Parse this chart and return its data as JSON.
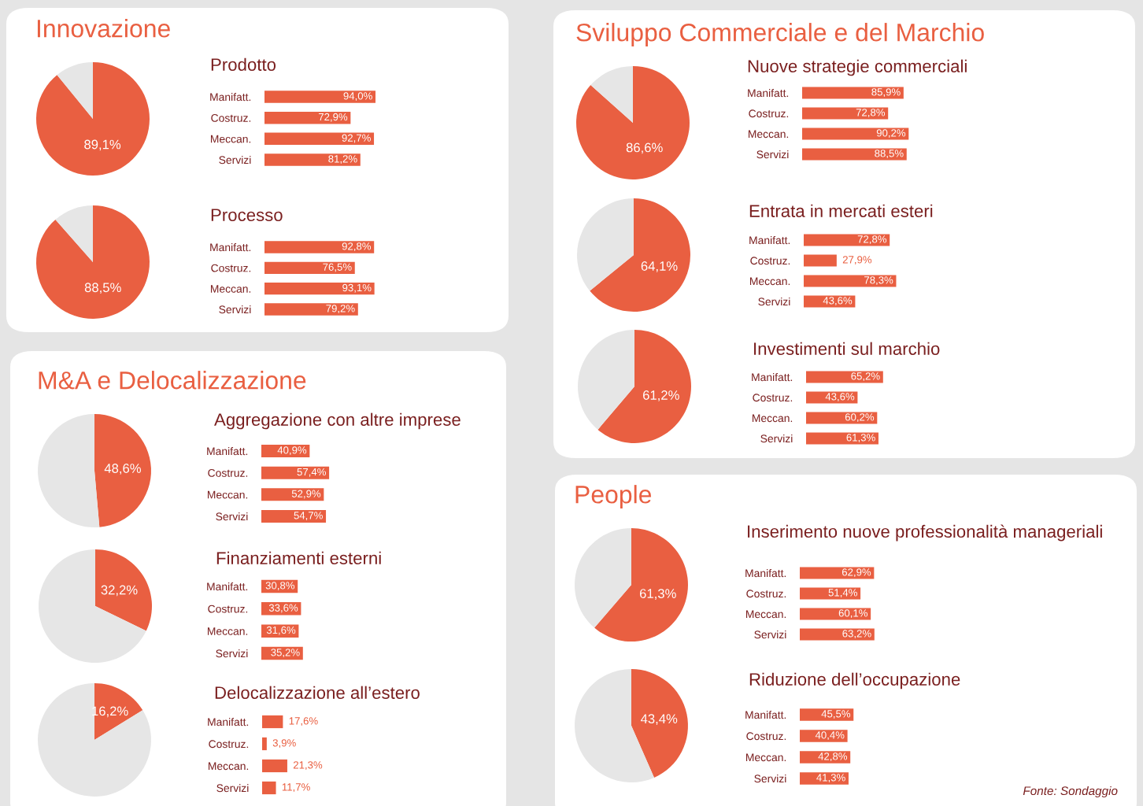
{
  "chart_data": [
    {
      "type": "pie",
      "title": "Innovazione",
      "categories": [
        null,
        null
      ],
      "values": [
        89.1,
        10.9
      ],
      "colors": [
        "#e95f41",
        "#e6e6e6"
      ],
      "value_labels": [
        "89,1%",
        null
      ]
    },
    {
      "type": "bar",
      "orientation": "horizontal",
      "title": "Prodotto",
      "categories": [
        "Manifatt.",
        "Costruz.",
        "Meccan.",
        "Servizi"
      ],
      "values": [
        94.0,
        72.9,
        92.7,
        81.2
      ],
      "color": "#e95f41",
      "value_labels": [
        "94,0%",
        "72,9%",
        "92,7%",
        "81,2%"
      ],
      "tick_labels": "y"
    },
    {
      "type": "pie",
      "categories": [
        null,
        null
      ],
      "values": [
        88.5,
        11.5
      ],
      "colors": [
        "#e95f41",
        "#e6e6e6"
      ],
      "value_labels": [
        "88,5%",
        null
      ]
    },
    {
      "type": "bar",
      "orientation": "horizontal",
      "title": "Processo",
      "categories": [
        "Manifatt.",
        "Costruz.",
        "Meccan.",
        "Servizi"
      ],
      "values": [
        92.8,
        76.5,
        93.1,
        79.2
      ],
      "color": "#e95f41",
      "value_labels": [
        "92,8%",
        "76,5%",
        "93,1%",
        "79,2%"
      ],
      "tick_labels": "y"
    },
    {
      "type": "pie",
      "title": "M&A e Delocalizzazione",
      "categories": [
        null,
        null
      ],
      "values": [
        48.6,
        51.4
      ],
      "colors": [
        "#e95f41",
        "#e6e6e6"
      ],
      "value_labels": [
        "48,6%",
        null
      ]
    },
    {
      "type": "bar",
      "orientation": "horizontal",
      "title": "Aggregazione con altre imprese",
      "categories": [
        "Manifatt.",
        "Costruz.",
        "Meccan.",
        "Servizi"
      ],
      "values": [
        40.9,
        57.4,
        52.9,
        54.7
      ],
      "color": "#e95f41",
      "value_labels": [
        "40,9%",
        "57,4%",
        "52,9%",
        "54,7%"
      ],
      "tick_labels": "y"
    },
    {
      "type": "pie",
      "categories": [
        null,
        null
      ],
      "values": [
        32.2,
        67.8
      ],
      "colors": [
        "#e95f41",
        "#e6e6e6"
      ],
      "value_labels": [
        "32,2%",
        null
      ]
    },
    {
      "type": "bar",
      "orientation": "horizontal",
      "title": "Finanziamenti esterni",
      "categories": [
        "Manifatt.",
        "Costruz.",
        "Meccan.",
        "Servizi"
      ],
      "values": [
        30.8,
        33.6,
        31.6,
        35.2
      ],
      "color": "#e95f41",
      "value_labels": [
        "30,8%",
        "33,6%",
        "31,6%",
        "35,2%"
      ],
      "tick_labels": "y"
    },
    {
      "type": "pie",
      "categories": [
        null,
        null
      ],
      "values": [
        16.2,
        83.8
      ],
      "colors": [
        "#e95f41",
        "#e6e6e6"
      ],
      "value_labels": [
        "16,2%",
        null
      ]
    },
    {
      "type": "bar",
      "orientation": "horizontal",
      "title": "Delocalizzazione all’estero",
      "categories": [
        "Manifatt.",
        "Costruz.",
        "Meccan.",
        "Servizi"
      ],
      "values": [
        17.6,
        3.9,
        21.3,
        11.7
      ],
      "color": "#e95f41",
      "value_labels": [
        "17,6%",
        "3,9%",
        "21,3%",
        "11,7%"
      ],
      "tick_labels": "y"
    },
    {
      "type": "pie",
      "title": "Sviluppo Commerciale e del Marchio",
      "categories": [
        null,
        null
      ],
      "values": [
        86.6,
        13.4
      ],
      "colors": [
        "#e95f41",
        "#e6e6e6"
      ],
      "value_labels": [
        "86,6%",
        null
      ]
    },
    {
      "type": "bar",
      "orientation": "horizontal",
      "title": "Nuove strategie commerciali",
      "categories": [
        "Manifatt.",
        "Costruz.",
        "Meccan.",
        "Servizi"
      ],
      "values": [
        85.9,
        72.8,
        90.2,
        88.5
      ],
      "color": "#e95f41",
      "value_labels": [
        "85,9%",
        "72,8%",
        "90,2%",
        "88,5%"
      ],
      "tick_labels": "y"
    },
    {
      "type": "pie",
      "categories": [
        null,
        null
      ],
      "values": [
        64.1,
        35.9
      ],
      "colors": [
        "#e95f41",
        "#e6e6e6"
      ],
      "value_labels": [
        "64,1%",
        null
      ]
    },
    {
      "type": "bar",
      "orientation": "horizontal",
      "title": "Entrata in mercati esteri",
      "categories": [
        "Manifatt.",
        "Costruz.",
        "Meccan.",
        "Servizi"
      ],
      "values": [
        72.8,
        27.9,
        78.3,
        43.6
      ],
      "color": "#e95f41",
      "value_labels": [
        "72,8%",
        "27,9%",
        "78,3%",
        "43,6%"
      ],
      "tick_labels": "y"
    },
    {
      "type": "pie",
      "categories": [
        null,
        null
      ],
      "values": [
        61.2,
        38.8
      ],
      "colors": [
        "#e95f41",
        "#e6e6e6"
      ],
      "value_labels": [
        "61,2%",
        null
      ]
    },
    {
      "type": "bar",
      "orientation": "horizontal",
      "title": "Investimenti sul marchio",
      "categories": [
        "Manifatt.",
        "Costruz.",
        "Meccan.",
        "Servizi"
      ],
      "values": [
        65.2,
        43.6,
        60.2,
        61.3
      ],
      "color": "#e95f41",
      "value_labels": [
        "65,2%",
        "43,6%",
        "60,2%",
        "61,3%"
      ],
      "tick_labels": "y"
    },
    {
      "type": "pie",
      "title": "People",
      "categories": [
        null,
        null
      ],
      "values": [
        61.3,
        38.7
      ],
      "colors": [
        "#e95f41",
        "#e6e6e6"
      ],
      "value_labels": [
        "61,3%",
        null
      ]
    },
    {
      "type": "bar",
      "orientation": "horizontal",
      "title": "Inserimento nuove professionalità manageriali",
      "categories": [
        "Manifatt.",
        "Costruz.",
        "Meccan.",
        "Servizi"
      ],
      "values": [
        62.9,
        51.4,
        60.1,
        63.2
      ],
      "color": "#e95f41",
      "value_labels": [
        "62,9%",
        "51,4%",
        "60,1%",
        "63,2%"
      ],
      "tick_labels": "y"
    },
    {
      "type": "pie",
      "categories": [
        null,
        null
      ],
      "values": [
        43.4,
        56.6
      ],
      "colors": [
        "#e95f41",
        "#e6e6e6"
      ],
      "value_labels": [
        "43,4%",
        null
      ]
    },
    {
      "type": "bar",
      "orientation": "horizontal",
      "title": "Riduzione dell’occupazione",
      "categories": [
        "Manifatt.",
        "Costruz.",
        "Meccan.",
        "Servizi"
      ],
      "values": [
        45.5,
        40.4,
        42.8,
        41.3
      ],
      "color": "#e95f41",
      "value_labels": [
        "45,5%",
        "40,4%",
        "42,8%",
        "41,3%"
      ],
      "tick_labels": "y",
      "annotations": [
        "Fonte: Sondaggio"
      ]
    }
  ]
}
